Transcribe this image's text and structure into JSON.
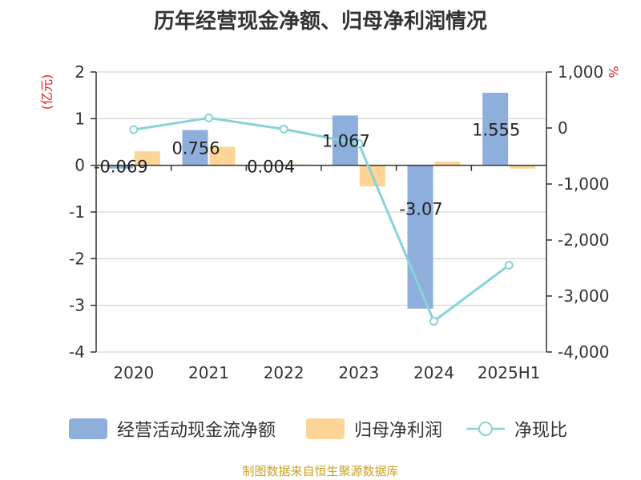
{
  "title": "历年经营现金净额、归母净利润情况",
  "source_note": "制图数据来自恒生聚源数据库",
  "legend": {
    "cash_label": "经营活动现金流净额",
    "profit_label": "归母净利润",
    "ratio_label": "净现比"
  },
  "colors": {
    "cash_bar": "#8eaedb",
    "profit_bar": "#fcd597",
    "ratio_line": "#88d3d8",
    "unit_text": "#e02020",
    "source_text": "#c9a227"
  },
  "chart_data": {
    "type": "bar",
    "categories": [
      "2020",
      "2021",
      "2022",
      "2023",
      "2024",
      "2025H1"
    ],
    "series": [
      {
        "name": "经营活动现金流净额",
        "type": "bar",
        "axis": "left",
        "values": [
          -0.069,
          0.756,
          0.004,
          1.067,
          -3.07,
          1.555
        ],
        "labels": [
          "-0.069",
          "0.756",
          "0.004",
          "1.067",
          "-3.07",
          "1.555"
        ]
      },
      {
        "name": "归母净利润",
        "type": "bar",
        "axis": "left",
        "values": [
          0.3,
          0.4,
          0.02,
          -0.45,
          0.08,
          -0.07
        ]
      },
      {
        "name": "净现比",
        "type": "line",
        "axis": "right",
        "values": [
          -30,
          180,
          -20,
          -280,
          -3450,
          -2450
        ]
      }
    ],
    "y_left": {
      "unit": "(亿元)",
      "ylim": [
        -4,
        2
      ],
      "ticks": [
        2,
        1,
        0,
        -1,
        -2,
        -3,
        -4
      ]
    },
    "y_right": {
      "unit": "%",
      "ylim": [
        -4000,
        1000
      ],
      "ticks": [
        1000,
        0,
        -1000,
        -2000,
        -3000,
        -4000
      ],
      "tick_labels": [
        "1,000",
        "0",
        "-1,000",
        "-2,000",
        "-3,000",
        "-4,000"
      ]
    },
    "grid": true,
    "legend_position": "bottom"
  }
}
